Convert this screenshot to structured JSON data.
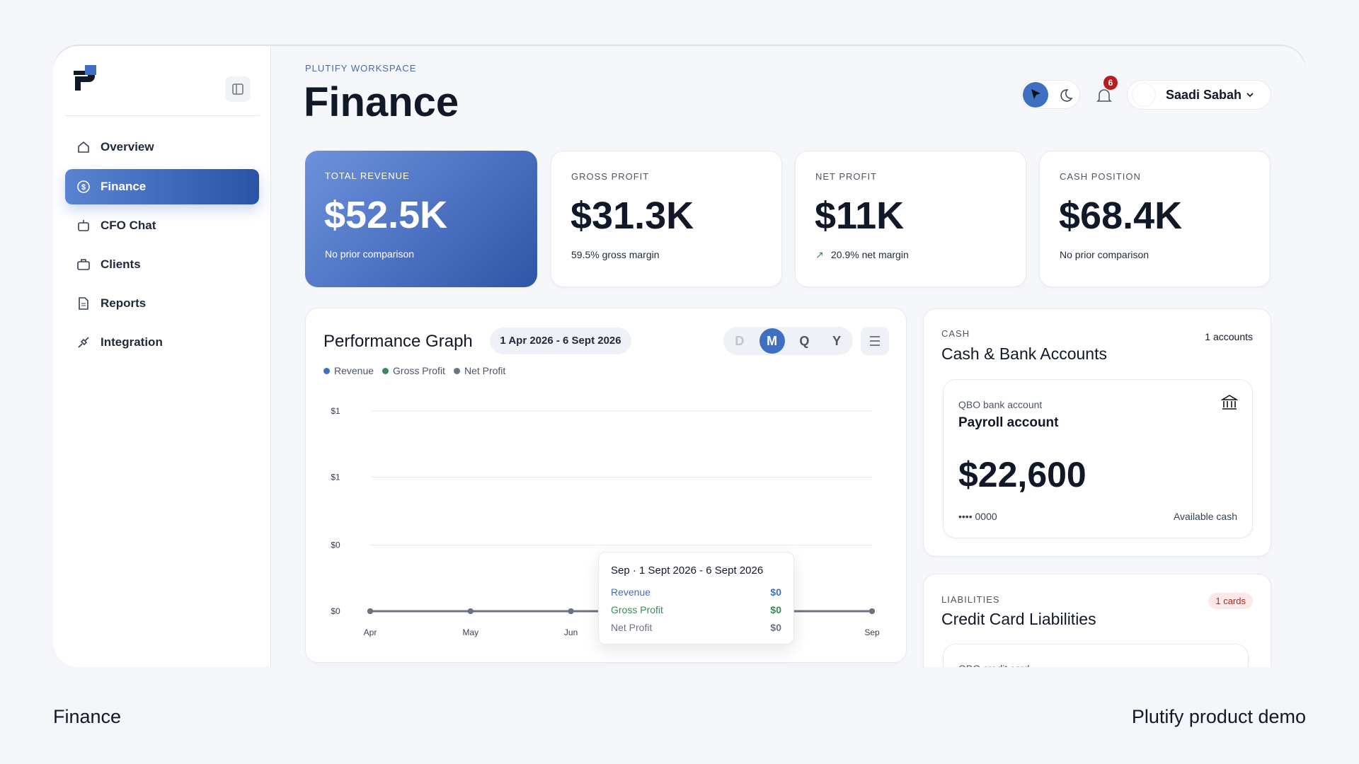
{
  "sidebar": {
    "nav": [
      "Overview",
      "Finance",
      "CFO Chat",
      "Clients",
      "Reports",
      "Integration"
    ]
  },
  "header": {
    "workspace": "PLUTIFY WORKSPACE",
    "title": "Finance",
    "notifications": "6",
    "user": "Saadi Sabah"
  },
  "kpis": [
    {
      "label": "TOTAL REVENUE",
      "value": "$52.5K",
      "note": "No prior comparison"
    },
    {
      "label": "GROSS PROFIT",
      "value": "$31.3K",
      "note": "59.5% gross margin"
    },
    {
      "label": "NET PROFIT",
      "value": "$11K",
      "note": "20.9% net margin"
    },
    {
      "label": "CASH POSITION",
      "value": "$68.4K",
      "note": "No prior comparison"
    }
  ],
  "performance": {
    "title": "Performance Graph",
    "date_range": "1 Apr 2026 - 6 Sept 2026",
    "periods": [
      "D",
      "M",
      "Q",
      "Y"
    ],
    "chart": {
      "type": "line",
      "categories": [
        "Apr",
        "May",
        "Jun",
        null,
        null,
        "Sep"
      ],
      "series": [
        {
          "name": "Revenue",
          "color": "#3f6fc0",
          "values": [
            0,
            0,
            0,
            0,
            0,
            0
          ]
        },
        {
          "name": "Gross Profit",
          "color": "#3a8a5c",
          "values": [
            0,
            0,
            0,
            0,
            0,
            0
          ]
        },
        {
          "name": "Net Profit",
          "color": "#6b7280",
          "values": [
            0,
            0,
            0,
            0,
            0,
            0
          ]
        }
      ],
      "ylim": [
        0,
        1
      ],
      "yticks": [
        {
          "value": 0,
          "label": "$0"
        },
        {
          "value": 0.33,
          "label": "$0"
        },
        {
          "value": 0.67,
          "label": "$1"
        },
        {
          "value": 1,
          "label": "$1"
        }
      ],
      "grid": true
    },
    "tooltip": {
      "title": "Sep · 1 Sept 2026 - 6 Sept 2026",
      "rows": [
        {
          "name": "Revenue",
          "value": "$0"
        },
        {
          "name": "Gross Profit",
          "value": "$0"
        },
        {
          "name": "Net Profit",
          "value": "$0"
        }
      ]
    }
  },
  "cash": {
    "label": "CASH",
    "title": "Cash & Bank Accounts",
    "count": "1 accounts",
    "account": {
      "type": "QBO bank account",
      "name": "Payroll account",
      "balance": "$22,600",
      "number": "•••• 0000",
      "note": "Available cash"
    }
  },
  "liabilities": {
    "label": "LIABILITIES",
    "title": "Credit Card Liabilities",
    "count": "1 cards",
    "account_type": "QBO credit card"
  },
  "footer": {
    "left": "Finance",
    "right": "Plutify product demo"
  }
}
